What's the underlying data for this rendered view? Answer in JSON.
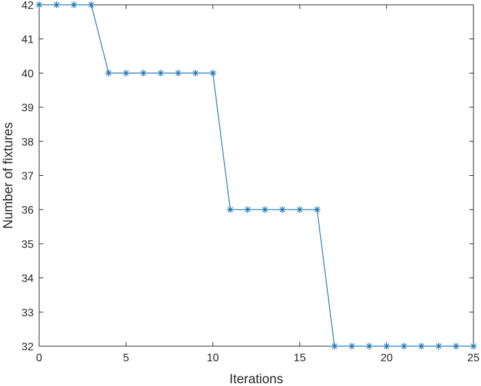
{
  "chart_data": {
    "type": "line",
    "title": "",
    "xlabel": "Iterations",
    "ylabel": "Number of fixtures",
    "xlim": [
      0,
      25
    ],
    "ylim": [
      32,
      42
    ],
    "xticks": [
      "0",
      "5",
      "10",
      "15",
      "20",
      "25"
    ],
    "yticks": [
      "32",
      "33",
      "34",
      "35",
      "36",
      "37",
      "38",
      "39",
      "40",
      "41",
      "42"
    ],
    "grid": false,
    "marker": "asterisk",
    "series": [
      {
        "color": "#1f77b4",
        "x": [
          0,
          1,
          2,
          3,
          4,
          5,
          6,
          7,
          8,
          9,
          10,
          11,
          12,
          13,
          14,
          15,
          16,
          17,
          18,
          19,
          20,
          21,
          22,
          23,
          24,
          25
        ],
        "y": [
          42,
          42,
          42,
          42,
          40,
          40,
          40,
          40,
          40,
          40,
          40,
          36,
          36,
          36,
          36,
          36,
          36,
          32,
          32,
          32,
          32,
          32,
          32,
          32,
          32,
          32
        ]
      }
    ]
  }
}
